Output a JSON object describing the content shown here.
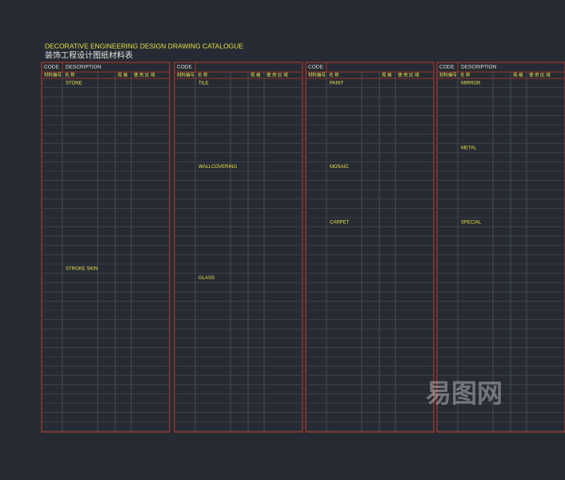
{
  "title": "DECORATIVE ENGINEERING DESIGN DRAWING CATALOGUE",
  "subtitle": "装饰工程设计图纸材料表",
  "panels": [
    {
      "code": "CODE",
      "description": "DESCRIPTION",
      "columns": [
        "材料编号",
        "名 称",
        "规 格",
        "使 用 区 域"
      ],
      "sections": [
        "STONE",
        "STROKE SKIN"
      ]
    },
    {
      "code": "CODE",
      "columns": [
        "材料编号",
        "名 称",
        "规 格",
        "使 用 区 域"
      ],
      "sections": [
        "TILE",
        "WALLCOVERING",
        "GLASS"
      ]
    },
    {
      "code": "CODE",
      "columns": [
        "材料编号",
        "名 称",
        "规 格",
        "使 用 区 域"
      ],
      "sections": [
        "PAINT",
        "MOSAIC",
        "CARPET"
      ]
    },
    {
      "code": "CODE",
      "description": "DESCRIPTION",
      "columns": [
        "材料编号",
        "名 称",
        "规 格",
        "使 用 区 域"
      ],
      "sections": [
        "MIRROR",
        "METAL",
        "SPECIAL"
      ]
    }
  ],
  "watermark": "易图网"
}
